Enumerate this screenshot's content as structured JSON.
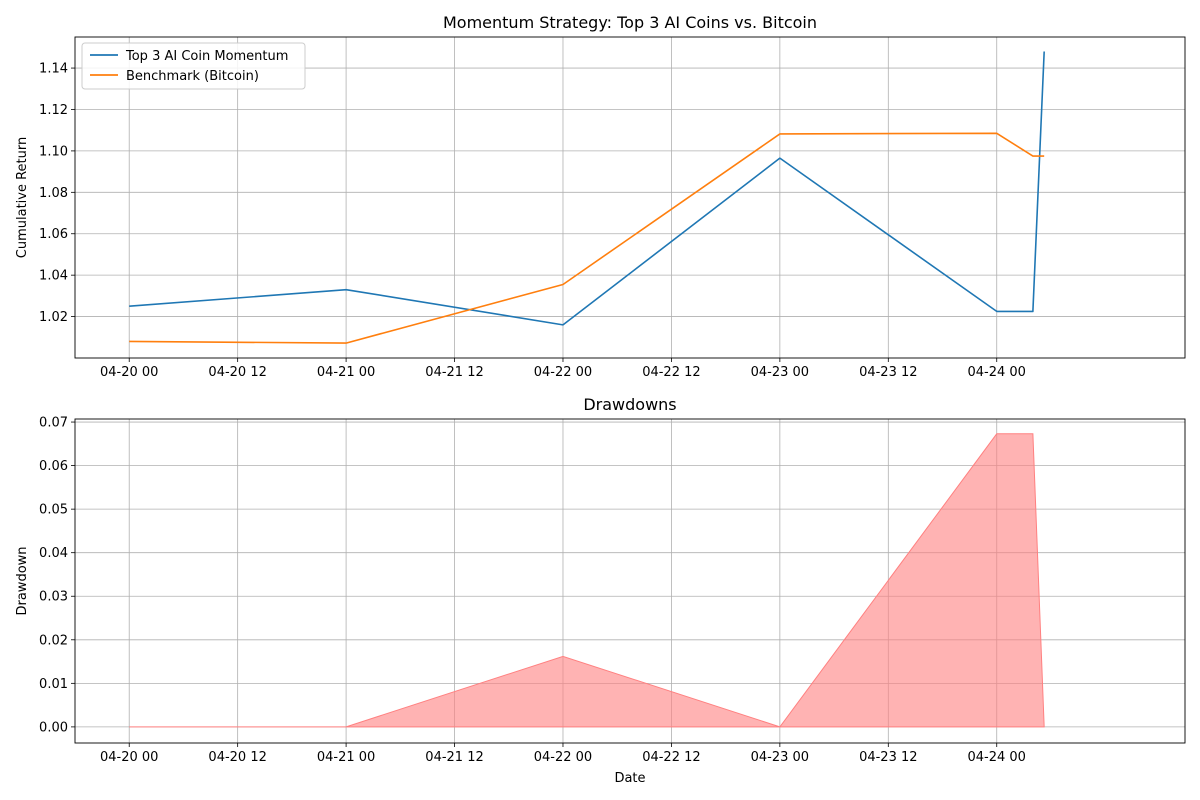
{
  "chart_data": [
    {
      "type": "line",
      "title": "Momentum Strategy: Top 3 AI Coins vs. Bitcoin",
      "xlabel": "",
      "ylabel": "Cumulative Return",
      "x_ticks": [
        "04-20 00",
        "04-20 12",
        "04-21 00",
        "04-21 12",
        "04-22 00",
        "04-22 12",
        "04-23 00",
        "04-23 12",
        "04-24 00"
      ],
      "y_ticks": [
        "1.02",
        "1.04",
        "1.06",
        "1.08",
        "1.10",
        "1.12",
        "1.14"
      ],
      "xlim": [
        "2025-04-19 18:00",
        "2025-04-24 20:50"
      ],
      "ylim": [
        1.0,
        1.155
      ],
      "grid": true,
      "legend": "top-left",
      "series": [
        {
          "name": "Top 3 AI Coin Momentum",
          "color": "#1f77b4",
          "points": [
            [
              "2025-04-20 00:00",
              1.025
            ],
            [
              "2025-04-21 00:00",
              1.033
            ],
            [
              "2025-04-22 00:00",
              1.016
            ],
            [
              "2025-04-23 00:00",
              1.0965
            ],
            [
              "2025-04-24 00:00",
              1.0225
            ],
            [
              "2025-04-24 04:00",
              1.0225
            ],
            [
              "2025-04-24 05:15",
              1.148
            ]
          ]
        },
        {
          "name": "Benchmark (Bitcoin)",
          "color": "#ff7f0e",
          "points": [
            [
              "2025-04-20 00:00",
              1.008
            ],
            [
              "2025-04-21 00:00",
              1.0072
            ],
            [
              "2025-04-22 00:00",
              1.0355
            ],
            [
              "2025-04-23 00:00",
              1.1082
            ],
            [
              "2025-04-24 00:00",
              1.1085
            ],
            [
              "2025-04-24 04:00",
              1.0975
            ],
            [
              "2025-04-24 05:15",
              1.0975
            ]
          ]
        }
      ]
    },
    {
      "type": "area",
      "title": "Drawdowns",
      "xlabel": "Date",
      "ylabel": "Drawdown",
      "x_ticks": [
        "04-20 00",
        "04-20 12",
        "04-21 00",
        "04-21 12",
        "04-22 00",
        "04-22 12",
        "04-23 00",
        "04-23 12",
        "04-24 00"
      ],
      "y_ticks": [
        "0.00",
        "0.01",
        "0.02",
        "0.03",
        "0.04",
        "0.05",
        "0.06",
        "0.07"
      ],
      "xlim": [
        "2025-04-19 18:00",
        "2025-04-24 20:50"
      ],
      "ylim": [
        -0.0037,
        0.0707
      ],
      "grid": true,
      "series": [
        {
          "color": "#ff8080",
          "points": [
            [
              "2025-04-20 00:00",
              0.0
            ],
            [
              "2025-04-21 00:00",
              0.0
            ],
            [
              "2025-04-22 00:00",
              0.0162
            ],
            [
              "2025-04-23 00:00",
              0.0
            ],
            [
              "2025-04-24 00:00",
              0.0673
            ],
            [
              "2025-04-24 04:00",
              0.0673
            ],
            [
              "2025-04-24 05:15",
              0.0
            ]
          ]
        }
      ]
    }
  ]
}
